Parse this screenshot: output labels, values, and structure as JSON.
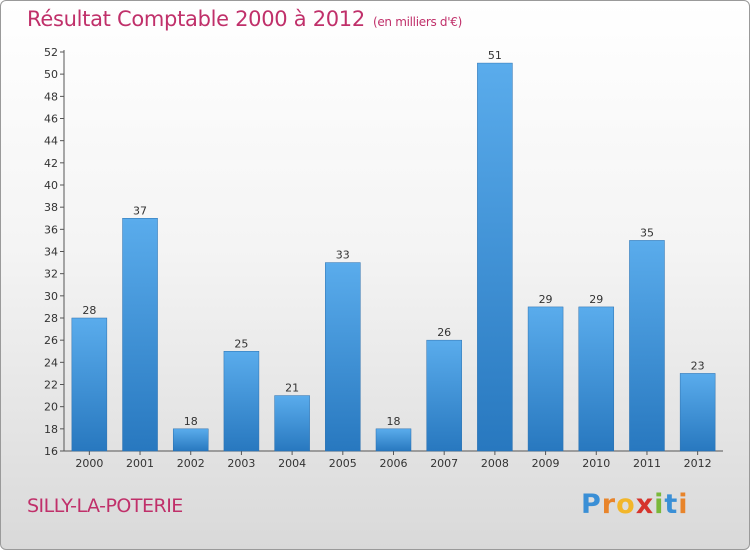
{
  "header": {
    "title": "Résultat Comptable 2000 à 2012",
    "subtitle": "(en milliers d'€)"
  },
  "footer": {
    "location": "SILLY-LA-POTERIE",
    "logo_letters": [
      {
        "ch": "P",
        "color": "#3a8fd6"
      },
      {
        "ch": "r",
        "color": "#e8842a"
      },
      {
        "ch": "o",
        "color": "#f2b62a"
      },
      {
        "ch": "x",
        "color": "#d6342c"
      },
      {
        "ch": "i",
        "color": "#7ab83a"
      },
      {
        "ch": "t",
        "color": "#3a8fd6"
      },
      {
        "ch": "i",
        "color": "#e8842a"
      }
    ]
  },
  "chart_data": {
    "type": "bar",
    "title": "Résultat Comptable 2000 à 2012",
    "categories": [
      "2000",
      "2001",
      "2002",
      "2003",
      "2004",
      "2005",
      "2006",
      "2007",
      "2008",
      "2009",
      "2010",
      "2011",
      "2012"
    ],
    "values": [
      28,
      37,
      18,
      25,
      21,
      33,
      18,
      26,
      51,
      29,
      29,
      35,
      23
    ],
    "ylim": [
      16,
      52
    ],
    "yticks": [
      16,
      18,
      20,
      22,
      24,
      26,
      28,
      30,
      32,
      34,
      36,
      38,
      40,
      42,
      44,
      46,
      48,
      50,
      52
    ],
    "grid": false,
    "bar_color": "#3d92d8",
    "data_labels": true
  }
}
